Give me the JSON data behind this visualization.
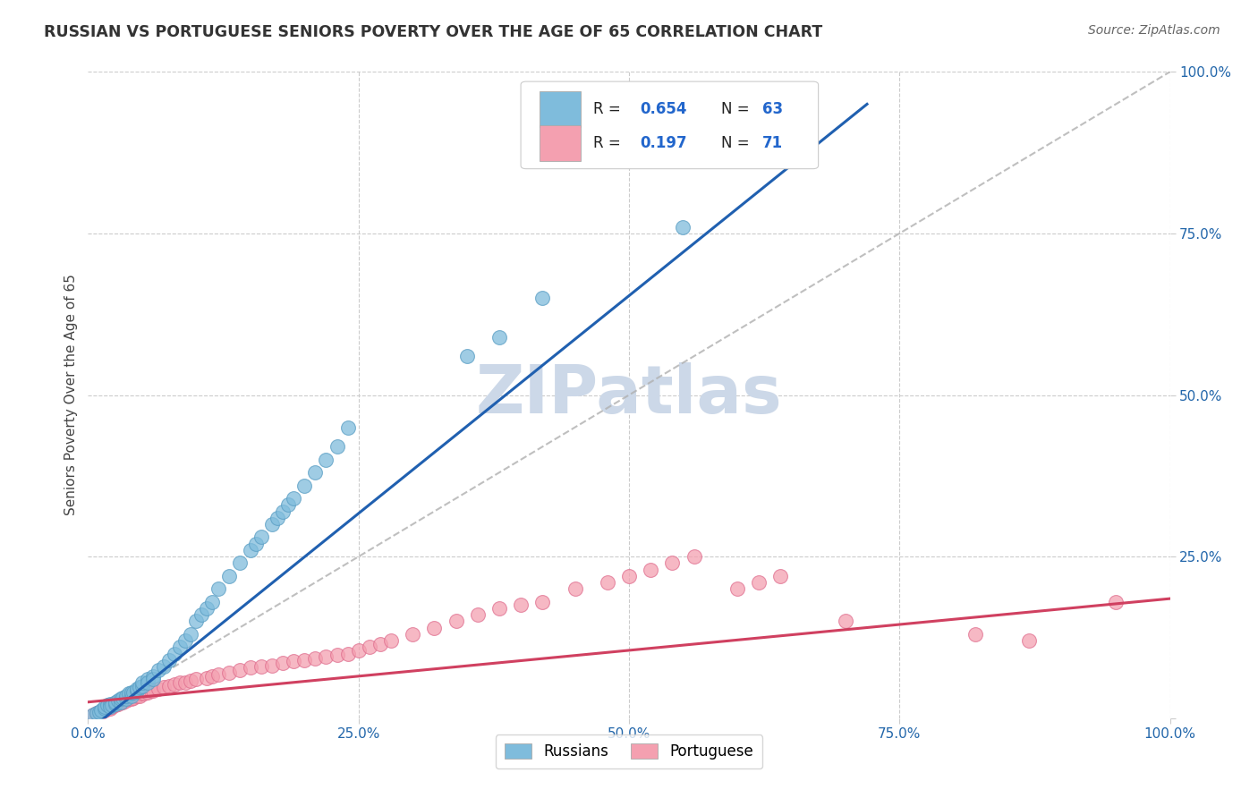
{
  "title": "RUSSIAN VS PORTUGUESE SENIORS POVERTY OVER THE AGE OF 65 CORRELATION CHART",
  "source": "Source: ZipAtlas.com",
  "ylabel": "Seniors Poverty Over the Age of 65",
  "xlim": [
    0,
    1.0
  ],
  "ylim": [
    0,
    1.0
  ],
  "xticks": [
    0.0,
    0.25,
    0.5,
    0.75,
    1.0
  ],
  "xticklabels": [
    "0.0%",
    "25.0%",
    "50.0%",
    "75.0%",
    "100.0%"
  ],
  "yticks": [
    0.0,
    0.25,
    0.5,
    0.75,
    1.0
  ],
  "ytick_left_labels": [
    "",
    "",
    "",
    "",
    ""
  ],
  "ytick_right_labels": [
    "",
    "25.0%",
    "50.0%",
    "75.0%",
    "100.0%"
  ],
  "russian_R": "0.654",
  "russian_N": "63",
  "portuguese_R": "0.197",
  "portuguese_N": "71",
  "russian_color": "#7fbcdc",
  "russian_edge_color": "#5a9ec4",
  "portuguese_color": "#f4a0b0",
  "portuguese_edge_color": "#e07090",
  "russian_line_color": "#2060b0",
  "portuguese_line_color": "#d04060",
  "diagonal_color": "#b0b0b0",
  "background_color": "#ffffff",
  "watermark": "ZIPatlas",
  "watermark_color": "#ccd8e8",
  "legend_label_russian": "Russians",
  "legend_label_portuguese": "Portuguese",
  "russians_x": [
    0.005,
    0.008,
    0.01,
    0.012,
    0.015,
    0.015,
    0.018,
    0.02,
    0.02,
    0.022,
    0.025,
    0.025,
    0.028,
    0.03,
    0.03,
    0.032,
    0.035,
    0.035,
    0.038,
    0.04,
    0.04,
    0.042,
    0.045,
    0.045,
    0.048,
    0.05,
    0.05,
    0.055,
    0.055,
    0.06,
    0.06,
    0.065,
    0.07,
    0.075,
    0.08,
    0.085,
    0.09,
    0.095,
    0.1,
    0.105,
    0.11,
    0.115,
    0.12,
    0.13,
    0.14,
    0.15,
    0.155,
    0.16,
    0.17,
    0.175,
    0.18,
    0.185,
    0.19,
    0.2,
    0.21,
    0.22,
    0.23,
    0.24,
    0.35,
    0.38,
    0.42,
    0.55,
    0.65
  ],
  "russians_y": [
    0.005,
    0.008,
    0.01,
    0.012,
    0.015,
    0.018,
    0.02,
    0.022,
    0.018,
    0.02,
    0.022,
    0.025,
    0.028,
    0.025,
    0.03,
    0.032,
    0.03,
    0.035,
    0.038,
    0.035,
    0.04,
    0.04,
    0.042,
    0.045,
    0.048,
    0.05,
    0.055,
    0.06,
    0.055,
    0.065,
    0.06,
    0.075,
    0.08,
    0.09,
    0.1,
    0.11,
    0.12,
    0.13,
    0.15,
    0.16,
    0.17,
    0.18,
    0.2,
    0.22,
    0.24,
    0.26,
    0.27,
    0.28,
    0.3,
    0.31,
    0.32,
    0.33,
    0.34,
    0.36,
    0.38,
    0.4,
    0.42,
    0.45,
    0.56,
    0.59,
    0.65,
    0.76,
    0.9
  ],
  "portuguese_x": [
    0.005,
    0.008,
    0.01,
    0.012,
    0.015,
    0.018,
    0.02,
    0.022,
    0.025,
    0.025,
    0.028,
    0.03,
    0.032,
    0.035,
    0.038,
    0.04,
    0.042,
    0.045,
    0.048,
    0.05,
    0.052,
    0.055,
    0.058,
    0.06,
    0.065,
    0.07,
    0.075,
    0.08,
    0.085,
    0.09,
    0.095,
    0.1,
    0.11,
    0.115,
    0.12,
    0.13,
    0.14,
    0.15,
    0.16,
    0.17,
    0.18,
    0.19,
    0.2,
    0.21,
    0.22,
    0.23,
    0.24,
    0.25,
    0.26,
    0.27,
    0.28,
    0.3,
    0.32,
    0.34,
    0.36,
    0.38,
    0.4,
    0.42,
    0.45,
    0.48,
    0.5,
    0.52,
    0.54,
    0.56,
    0.6,
    0.62,
    0.64,
    0.7,
    0.82,
    0.87,
    0.95
  ],
  "portuguese_y": [
    0.005,
    0.008,
    0.01,
    0.01,
    0.012,
    0.015,
    0.015,
    0.018,
    0.02,
    0.022,
    0.022,
    0.025,
    0.025,
    0.028,
    0.03,
    0.03,
    0.032,
    0.035,
    0.035,
    0.038,
    0.038,
    0.04,
    0.042,
    0.042,
    0.045,
    0.048,
    0.05,
    0.052,
    0.055,
    0.055,
    0.058,
    0.06,
    0.062,
    0.065,
    0.068,
    0.07,
    0.075,
    0.078,
    0.08,
    0.082,
    0.085,
    0.088,
    0.09,
    0.092,
    0.095,
    0.098,
    0.1,
    0.105,
    0.11,
    0.115,
    0.12,
    0.13,
    0.14,
    0.15,
    0.16,
    0.17,
    0.175,
    0.18,
    0.2,
    0.21,
    0.22,
    0.23,
    0.24,
    0.25,
    0.2,
    0.21,
    0.22,
    0.15,
    0.13,
    0.12,
    0.18
  ]
}
